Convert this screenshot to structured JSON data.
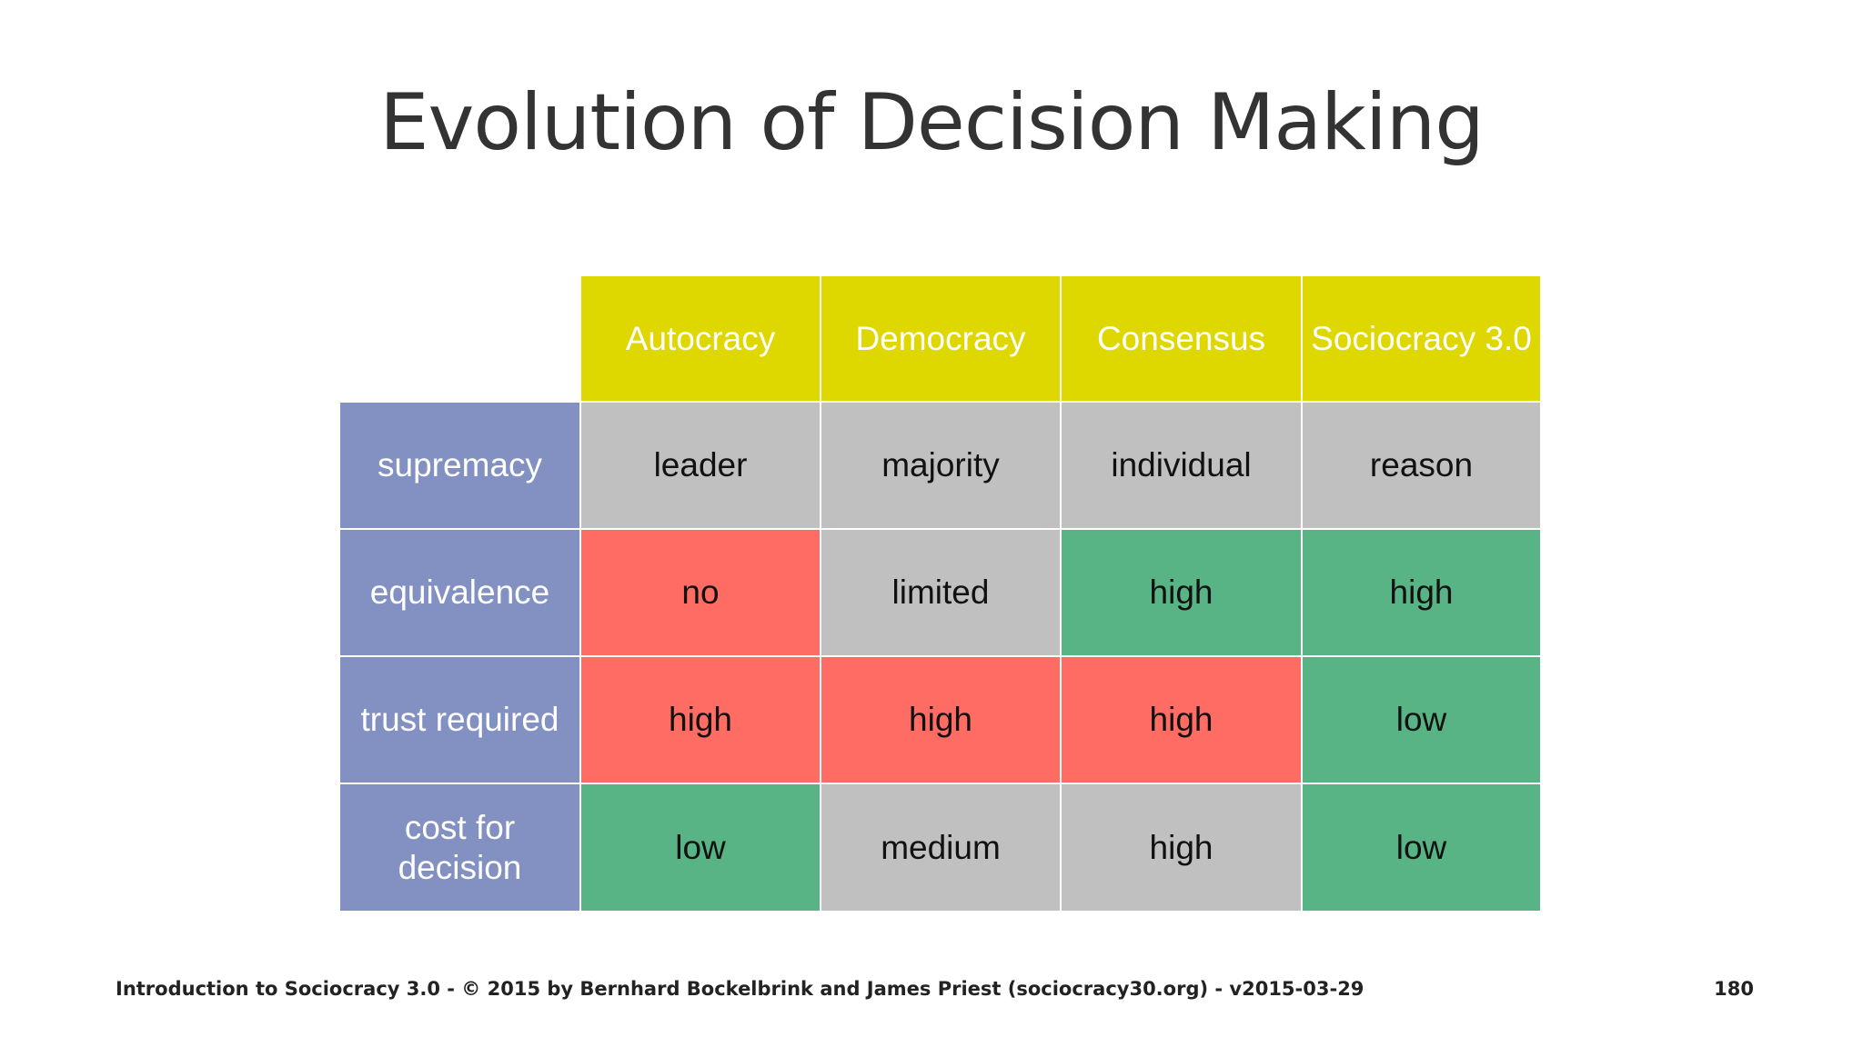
{
  "slide": {
    "title": "Evolution of Decision Making"
  },
  "table": {
    "columns": [
      "Autocracy",
      "Democracy",
      "Consensus",
      "Sociocracy 3.0"
    ],
    "rows": [
      {
        "label": "supremacy",
        "cells": [
          "leader",
          "majority",
          "individual",
          "reason"
        ],
        "colors": [
          "grey",
          "grey",
          "grey",
          "grey"
        ]
      },
      {
        "label": "equivalence",
        "cells": [
          "no",
          "limited",
          "high",
          "high"
        ],
        "colors": [
          "red",
          "grey",
          "green",
          "green"
        ]
      },
      {
        "label": "trust required",
        "cells": [
          "high",
          "high",
          "high",
          "low"
        ],
        "colors": [
          "red",
          "red",
          "red",
          "green"
        ]
      },
      {
        "label": "cost for decision",
        "cells": [
          "low",
          "medium",
          "high",
          "low"
        ],
        "colors": [
          "green",
          "grey",
          "grey",
          "green"
        ]
      }
    ],
    "palette": {
      "header": "#dfd700",
      "row_header": "#8290c2",
      "grey": "#c0c0c0",
      "red": "#fe6c64",
      "green": "#58b485"
    }
  },
  "footer": {
    "credit": "Introduction to Sociocracy 3.0 - © 2015 by Bernhard Bockelbrink and James Priest (sociocracy30.org) - v2015-03-29",
    "page_number": "180"
  }
}
